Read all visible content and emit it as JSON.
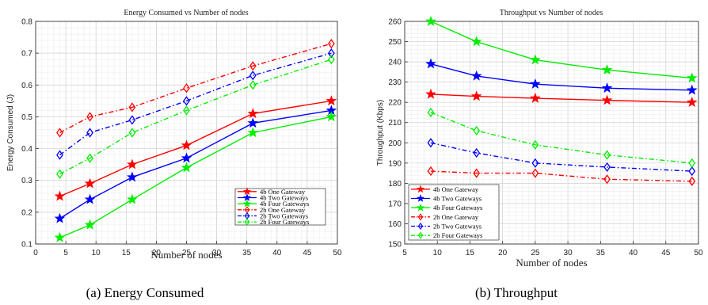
{
  "chart_data": [
    {
      "type": "line",
      "title": "Energy Consumed vs Number of nodes",
      "xlabel": "Number of nodes",
      "ylabel": "Energy Consumed (J)",
      "xlim": [
        0,
        50
      ],
      "ylim": [
        0.1,
        0.8
      ],
      "xticks": [
        0,
        5,
        10,
        15,
        20,
        25,
        30,
        35,
        40,
        45,
        50
      ],
      "yticks": [
        0.1,
        0.2,
        0.3,
        0.4,
        0.5,
        0.6,
        0.7,
        0.8
      ],
      "grid": true,
      "legend_position": "bottom-right",
      "caption": "(a) Energy Consumed",
      "x": [
        4,
        9,
        16,
        25,
        36,
        49
      ],
      "series": [
        {
          "name": "4b One Gateway",
          "color": "#ff0000",
          "marker": "star",
          "dash": "solid",
          "values": [
            0.25,
            0.29,
            0.35,
            0.41,
            0.51,
            0.55
          ]
        },
        {
          "name": "4b Two Gateways",
          "color": "#0000ff",
          "marker": "star",
          "dash": "solid",
          "values": [
            0.18,
            0.24,
            0.31,
            0.37,
            0.48,
            0.52
          ]
        },
        {
          "name": "4b Four Gateways",
          "color": "#00ee00",
          "marker": "star",
          "dash": "solid",
          "values": [
            0.12,
            0.16,
            0.24,
            0.34,
            0.45,
            0.5
          ]
        },
        {
          "name": "2b One Gateway",
          "color": "#ff0000",
          "marker": "diamond",
          "dash": "dashdot",
          "values": [
            0.45,
            0.5,
            0.53,
            0.59,
            0.66,
            0.73
          ]
        },
        {
          "name": "2b Two Gateways",
          "color": "#0000ff",
          "marker": "diamond",
          "dash": "dashdot",
          "values": [
            0.38,
            0.45,
            0.49,
            0.55,
            0.63,
            0.7
          ]
        },
        {
          "name": "2b Four Gateways",
          "color": "#00ee00",
          "marker": "diamond",
          "dash": "dashdot",
          "values": [
            0.32,
            0.37,
            0.45,
            0.52,
            0.6,
            0.68
          ]
        }
      ]
    },
    {
      "type": "line",
      "title": "Throughput vs Number of nodes",
      "xlabel": "Number of nodes",
      "ylabel": "Throughput (Kbps)",
      "xlim": [
        5,
        50
      ],
      "ylim": [
        150,
        260
      ],
      "xticks": [
        5,
        10,
        15,
        20,
        25,
        30,
        35,
        40,
        45,
        50
      ],
      "yticks": [
        150,
        160,
        170,
        180,
        190,
        200,
        210,
        220,
        230,
        240,
        250,
        260
      ],
      "grid": true,
      "legend_position": "bottom-left",
      "caption": "(b) Throughput",
      "x": [
        9,
        16,
        25,
        36,
        49
      ],
      "series": [
        {
          "name": "4b One Gateway",
          "color": "#ff0000",
          "marker": "star",
          "dash": "solid",
          "values": [
            224,
            223,
            222,
            221,
            220
          ]
        },
        {
          "name": "4b Two Gateways",
          "color": "#0000ff",
          "marker": "star",
          "dash": "solid",
          "values": [
            239,
            233,
            229,
            227,
            226
          ]
        },
        {
          "name": "4b Four Gateways",
          "color": "#00ee00",
          "marker": "star",
          "dash": "solid",
          "values": [
            260,
            250,
            241,
            236,
            232
          ]
        },
        {
          "name": "2b One Gateway",
          "color": "#ff0000",
          "marker": "diamond",
          "dash": "dashdot",
          "values": [
            186,
            185,
            185,
            182,
            181
          ]
        },
        {
          "name": "2b Two Gateways",
          "color": "#0000ff",
          "marker": "diamond",
          "dash": "dashdot",
          "values": [
            200,
            195,
            190,
            188,
            186
          ]
        },
        {
          "name": "2b Four Gateways",
          "color": "#00ee00",
          "marker": "diamond",
          "dash": "dashdot",
          "values": [
            215,
            206,
            199,
            194,
            190
          ]
        }
      ]
    }
  ]
}
